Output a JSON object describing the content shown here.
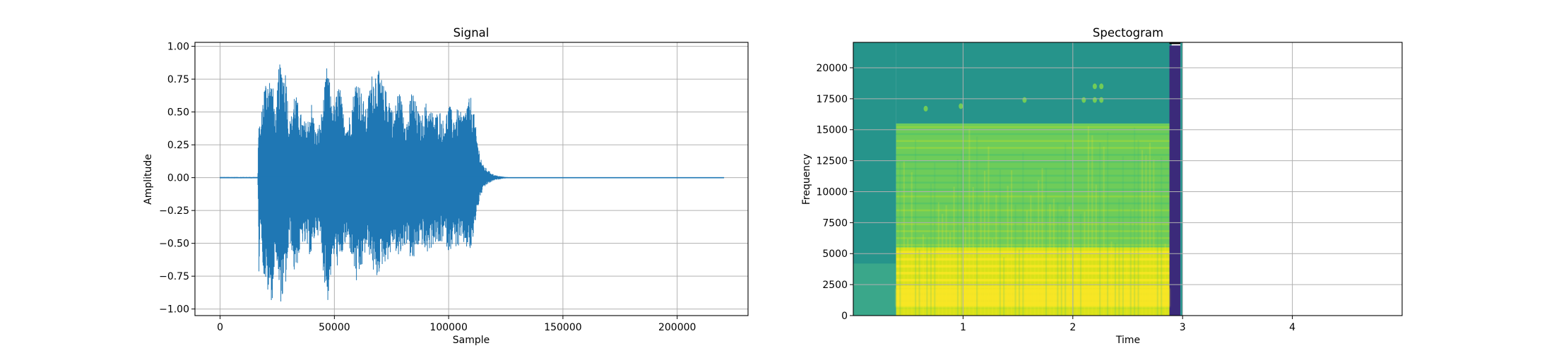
{
  "chart_data": [
    {
      "type": "line",
      "title": "Signal",
      "xlabel": "Sample",
      "ylabel": "Amplitude",
      "xlim": [
        -11000,
        231000
      ],
      "ylim": [
        -1.05,
        1.03
      ],
      "grid": true,
      "series_color": "#1f77b4",
      "x_ticks": [
        0,
        50000,
        100000,
        150000,
        200000
      ],
      "x_tick_labels": [
        "0",
        "50000",
        "100000",
        "150000",
        "200000"
      ],
      "y_ticks": [
        -1.0,
        -0.75,
        -0.5,
        -0.25,
        0.0,
        0.25,
        0.5,
        0.75,
        1.0
      ],
      "y_tick_labels": [
        "−1.00",
        "−0.75",
        "−0.50",
        "−0.25",
        "0.00",
        "0.25",
        "0.50",
        "0.75",
        "1.00"
      ],
      "series": [
        {
          "x_range": [
            0,
            220500
          ],
          "envelope": {
            "x": [
              0,
              16500,
              17000,
              17500,
              19000,
              21000,
              23000,
              24500,
              25500,
              27000,
              29000,
              30000,
              31000,
              32500,
              34000,
              36000,
              38000,
              40000,
              42000,
              44000,
              45500,
              47000,
              48500,
              50000,
              52000,
              54000,
              56000,
              58000,
              60000,
              62000,
              64000,
              66000,
              68000,
              70000,
              72000,
              74000,
              76000,
              78000,
              80000,
              82000,
              84000,
              86000,
              88000,
              90000,
              92000,
              94000,
              96000,
              98000,
              100000,
              102000,
              104000,
              106000,
              108000,
              110000,
              112000,
              113500,
              115000,
              117000,
              120000,
              123000,
              125000,
              128000,
              220500
            ],
            "upper": [
              0.005,
              0.005,
              0.6,
              0.35,
              0.7,
              0.82,
              0.72,
              0.45,
              0.86,
              0.87,
              0.83,
              0.45,
              0.45,
              0.68,
              0.58,
              0.45,
              0.42,
              0.58,
              0.35,
              0.45,
              0.65,
              0.9,
              0.62,
              0.55,
              0.75,
              0.5,
              0.43,
              0.62,
              0.82,
              0.65,
              0.5,
              0.78,
              0.85,
              0.8,
              0.68,
              0.65,
              0.48,
              0.7,
              0.55,
              0.45,
              0.7,
              0.55,
              0.45,
              0.58,
              0.53,
              0.48,
              0.53,
              0.42,
              0.58,
              0.48,
              0.53,
              0.48,
              0.58,
              0.63,
              0.37,
              0.2,
              0.1,
              0.06,
              0.02,
              0.01,
              0.005,
              0.002,
              0.002
            ],
            "lower": [
              -0.005,
              -0.005,
              -0.75,
              -0.3,
              -0.75,
              -0.9,
              -0.95,
              -0.55,
              -0.9,
              -0.97,
              -0.8,
              -0.55,
              -0.5,
              -0.75,
              -0.65,
              -0.5,
              -0.55,
              -0.62,
              -0.4,
              -0.5,
              -0.78,
              -0.97,
              -0.75,
              -0.6,
              -0.72,
              -0.55,
              -0.5,
              -0.65,
              -0.86,
              -0.7,
              -0.55,
              -0.62,
              -0.82,
              -0.7,
              -0.65,
              -0.62,
              -0.5,
              -0.65,
              -0.55,
              -0.5,
              -0.7,
              -0.55,
              -0.5,
              -0.6,
              -0.55,
              -0.5,
              -0.55,
              -0.45,
              -0.58,
              -0.5,
              -0.55,
              -0.5,
              -0.55,
              -0.58,
              -0.3,
              -0.18,
              -0.09,
              -0.05,
              -0.02,
              -0.01,
              -0.005,
              -0.002,
              -0.002
            ]
          }
        }
      ]
    },
    {
      "type": "heatmap",
      "title": "Spectogram",
      "xlabel": "Time",
      "ylabel": "Frequency",
      "xlim": [
        0,
        5.0
      ],
      "ylim": [
        0,
        22050
      ],
      "grid": true,
      "x_ticks": [
        1,
        2,
        3,
        4
      ],
      "x_tick_labels": [
        "1",
        "2",
        "3",
        "4"
      ],
      "y_ticks": [
        0,
        2500,
        5000,
        7500,
        10000,
        12500,
        15000,
        17500,
        20000
      ],
      "y_tick_labels": [
        "0",
        "2500",
        "5000",
        "7500",
        "10000",
        "12500",
        "15000",
        "17500",
        "20000"
      ],
      "colormap": "viridis",
      "data_extent": {
        "time": [
          0,
          3.0
        ],
        "frequency": [
          0,
          22050
        ]
      },
      "regions": [
        {
          "time": [
            0,
            0.39
          ],
          "frequency": [
            0,
            22050
          ],
          "level": "background",
          "color": "#26948b"
        },
        {
          "time": [
            0.39,
            2.9
          ],
          "frequency": [
            15500,
            22050
          ],
          "level": "background",
          "color": "#26948b"
        },
        {
          "time": [
            0.39,
            2.9
          ],
          "frequency": [
            5500,
            15500
          ],
          "level": "medium-high harmonic bands",
          "color": "#6ecc5a"
        },
        {
          "time": [
            0.39,
            2.9
          ],
          "frequency": [
            0,
            5500
          ],
          "level": "high energy",
          "color": "#d8e21a"
        },
        {
          "time": [
            0,
            0.39
          ],
          "frequency": [
            0,
            4200
          ],
          "level": "low noise",
          "color": "#3aa78a"
        },
        {
          "time": [
            2.88,
            2.98
          ],
          "frequency": [
            0,
            21800
          ],
          "level": "minimum",
          "color": "#3b2a7a"
        },
        {
          "time": [
            2.98,
            3.0
          ],
          "frequency": [
            0,
            22050
          ],
          "level": "background",
          "color": "#26948b"
        }
      ],
      "colors": {
        "min": "#440154",
        "background": "#21918c",
        "high": "#fde725"
      }
    }
  ]
}
